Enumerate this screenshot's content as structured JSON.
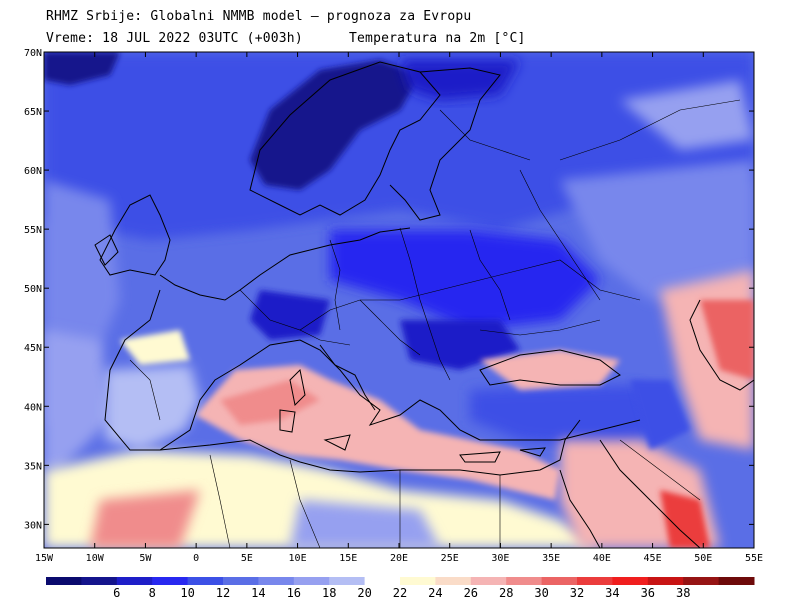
{
  "header": {
    "line1": "RHMZ Srbije: Globalni NMMB model — prognoza za Evropu",
    "line2_left": "Vreme: 18 JUL 2022 03UTC (+003h)",
    "line2_right": "Temperatura na 2m [°C]"
  },
  "map": {
    "lon_range": [
      -15,
      55
    ],
    "lat_range": [
      28,
      70
    ],
    "lon_labels": [
      "15W",
      "10W",
      "5W",
      "0",
      "5E",
      "10E",
      "15E",
      "20E",
      "25E",
      "30E",
      "35E",
      "40E",
      "45E",
      "50E",
      "55E"
    ],
    "lat_labels": [
      "70N",
      "65N",
      "60N",
      "55N",
      "50N",
      "45N",
      "40N",
      "35N",
      "30N"
    ]
  },
  "colorbar": {
    "colors": [
      "#0a0a6e",
      "#14148c",
      "#1e1ec8",
      "#2828f0",
      "#3c50e6",
      "#5a6ee6",
      "#7887ec",
      "#96a0f0",
      "#b4bef4",
      "#ffffff",
      "#fffad2",
      "#fadcc8",
      "#f5b4b4",
      "#f08c8c",
      "#eb6464",
      "#eb3c3c",
      "#f01e1e",
      "#c81414",
      "#961414",
      "#6e0a0a"
    ],
    "labels": [
      "6",
      "8",
      "10",
      "12",
      "14",
      "16",
      "18",
      "20",
      "22",
      "24",
      "26",
      "28",
      "30",
      "32",
      "34",
      "36",
      "38"
    ]
  }
}
